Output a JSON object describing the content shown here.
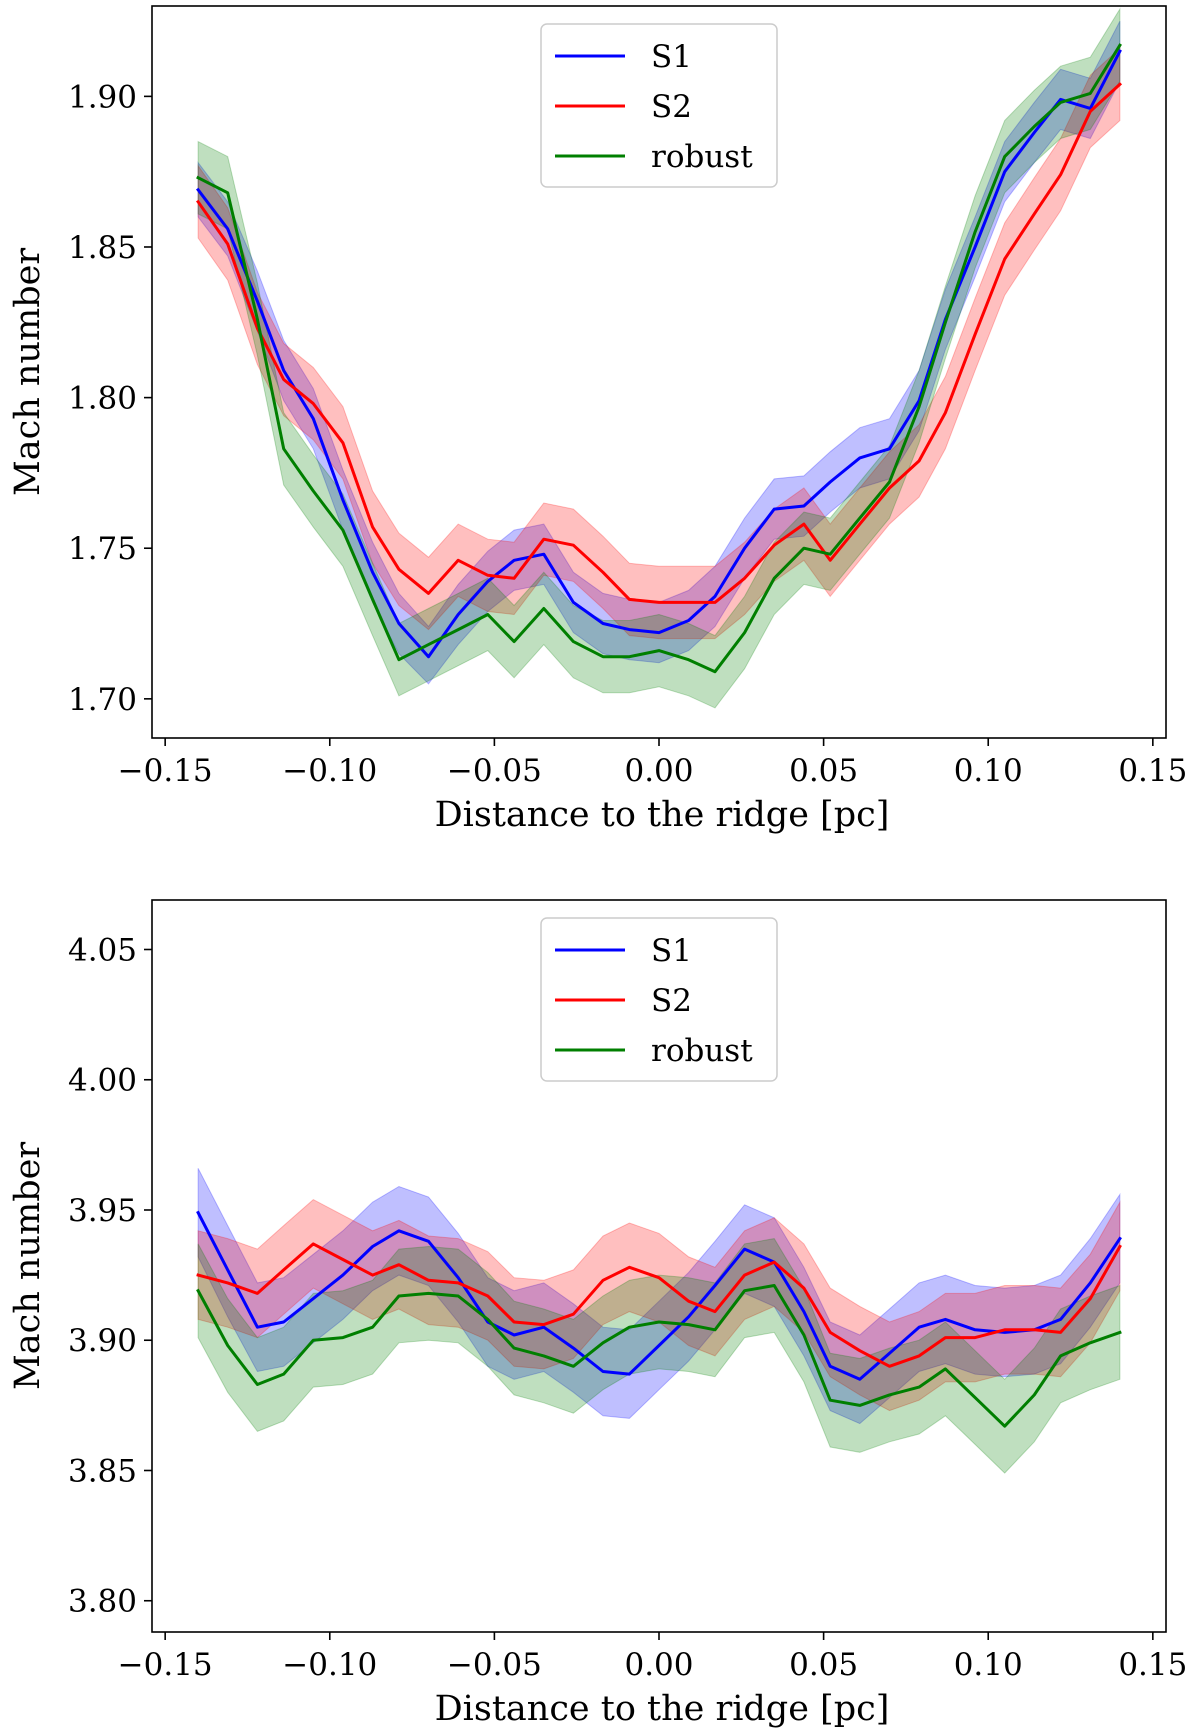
{
  "chart_data": [
    {
      "type": "line",
      "xlabel": "Distance to the ridge [pc]",
      "ylabel": "Mach number",
      "xlim": [
        -0.154,
        0.154
      ],
      "ylim": [
        1.687,
        1.93
      ],
      "xticks": [
        -0.15,
        -0.1,
        -0.05,
        0.0,
        0.05,
        0.1,
        0.15
      ],
      "xtick_labels": [
        "−0.15",
        "−0.10",
        "−0.05",
        "0.00",
        "0.05",
        "0.10",
        "0.15"
      ],
      "yticks": [
        1.7,
        1.75,
        1.8,
        1.85,
        1.9
      ],
      "ytick_labels": [
        "1.70",
        "1.75",
        "1.80",
        "1.85",
        "1.90"
      ],
      "legend_position": "upper-center",
      "x": [
        -0.14,
        -0.131,
        -0.122,
        -0.114,
        -0.105,
        -0.096,
        -0.087,
        -0.079,
        -0.07,
        -0.061,
        -0.052,
        -0.044,
        -0.035,
        -0.026,
        -0.017,
        -0.009,
        0.0,
        0.009,
        0.017,
        0.026,
        0.035,
        0.044,
        0.052,
        0.061,
        0.07,
        0.079,
        0.087,
        0.096,
        0.105,
        0.114,
        0.122,
        0.131,
        0.14
      ],
      "series": [
        {
          "name": "S1",
          "color": "#0000ff",
          "band_opacity": 0.25,
          "values": [
            1.869,
            1.856,
            1.832,
            1.809,
            1.793,
            1.766,
            1.742,
            1.725,
            1.714,
            1.728,
            1.739,
            1.746,
            1.748,
            1.732,
            1.725,
            1.723,
            1.722,
            1.726,
            1.734,
            1.75,
            1.763,
            1.764,
            1.772,
            1.78,
            1.783,
            1.799,
            1.826,
            1.85,
            1.875,
            1.888,
            1.899,
            1.896,
            1.915
          ],
          "lower": [
            1.86,
            1.847,
            1.822,
            1.799,
            1.783,
            1.756,
            1.732,
            1.715,
            1.705,
            1.718,
            1.729,
            1.736,
            1.738,
            1.722,
            1.715,
            1.713,
            1.712,
            1.716,
            1.724,
            1.74,
            1.753,
            1.754,
            1.762,
            1.77,
            1.773,
            1.789,
            1.816,
            1.84,
            1.865,
            1.878,
            1.889,
            1.886,
            1.905
          ],
          "upper": [
            1.878,
            1.865,
            1.842,
            1.819,
            1.803,
            1.776,
            1.752,
            1.735,
            1.724,
            1.738,
            1.749,
            1.756,
            1.758,
            1.742,
            1.735,
            1.733,
            1.732,
            1.736,
            1.744,
            1.76,
            1.773,
            1.774,
            1.782,
            1.79,
            1.793,
            1.809,
            1.836,
            1.86,
            1.885,
            1.898,
            1.909,
            1.906,
            1.925
          ]
        },
        {
          "name": "S2",
          "color": "#ff0000",
          "band_opacity": 0.25,
          "values": [
            1.865,
            1.851,
            1.823,
            1.806,
            1.798,
            1.785,
            1.757,
            1.743,
            1.735,
            1.746,
            1.741,
            1.74,
            1.753,
            1.751,
            1.742,
            1.733,
            1.732,
            1.732,
            1.732,
            1.74,
            1.751,
            1.758,
            1.746,
            1.758,
            1.77,
            1.779,
            1.795,
            1.821,
            1.846,
            1.861,
            1.874,
            1.895,
            1.904
          ],
          "lower": [
            1.853,
            1.839,
            1.811,
            1.794,
            1.786,
            1.773,
            1.745,
            1.731,
            1.723,
            1.734,
            1.729,
            1.728,
            1.741,
            1.739,
            1.73,
            1.721,
            1.72,
            1.72,
            1.72,
            1.728,
            1.739,
            1.746,
            1.734,
            1.746,
            1.758,
            1.767,
            1.783,
            1.809,
            1.834,
            1.849,
            1.862,
            1.883,
            1.892
          ],
          "upper": [
            1.877,
            1.863,
            1.835,
            1.818,
            1.81,
            1.797,
            1.769,
            1.755,
            1.747,
            1.758,
            1.753,
            1.752,
            1.765,
            1.763,
            1.754,
            1.745,
            1.744,
            1.744,
            1.744,
            1.752,
            1.763,
            1.77,
            1.758,
            1.77,
            1.782,
            1.791,
            1.807,
            1.833,
            1.858,
            1.873,
            1.886,
            1.907,
            1.916
          ]
        },
        {
          "name": "robust",
          "color": "#007f00",
          "band_opacity": 0.25,
          "values": [
            1.873,
            1.868,
            1.826,
            1.783,
            1.769,
            1.756,
            1.733,
            1.713,
            1.718,
            1.723,
            1.728,
            1.719,
            1.73,
            1.719,
            1.714,
            1.714,
            1.716,
            1.713,
            1.709,
            1.722,
            1.74,
            1.75,
            1.748,
            1.76,
            1.772,
            1.797,
            1.825,
            1.855,
            1.88,
            1.89,
            1.898,
            1.901,
            1.917
          ],
          "lower": [
            1.861,
            1.856,
            1.814,
            1.771,
            1.757,
            1.744,
            1.721,
            1.701,
            1.706,
            1.711,
            1.716,
            1.707,
            1.718,
            1.707,
            1.702,
            1.702,
            1.704,
            1.701,
            1.697,
            1.71,
            1.728,
            1.738,
            1.736,
            1.748,
            1.76,
            1.785,
            1.813,
            1.843,
            1.868,
            1.878,
            1.886,
            1.889,
            1.905
          ],
          "upper": [
            1.885,
            1.88,
            1.838,
            1.795,
            1.781,
            1.768,
            1.745,
            1.725,
            1.73,
            1.735,
            1.74,
            1.731,
            1.742,
            1.731,
            1.726,
            1.726,
            1.728,
            1.725,
            1.721,
            1.734,
            1.752,
            1.762,
            1.76,
            1.772,
            1.784,
            1.809,
            1.837,
            1.867,
            1.892,
            1.902,
            1.91,
            1.913,
            1.929
          ]
        }
      ]
    },
    {
      "type": "line",
      "xlabel": "Distance to the ridge [pc]",
      "ylabel": "Mach number",
      "xlim": [
        -0.154,
        0.154
      ],
      "ylim": [
        3.788,
        4.069
      ],
      "xticks": [
        -0.15,
        -0.1,
        -0.05,
        0.0,
        0.05,
        0.1,
        0.15
      ],
      "xtick_labels": [
        "−0.15",
        "−0.10",
        "−0.05",
        "0.00",
        "0.05",
        "0.10",
        "0.15"
      ],
      "yticks": [
        3.8,
        3.85,
        3.9,
        3.95,
        4.0,
        4.05
      ],
      "ytick_labels": [
        "3.80",
        "3.85",
        "3.90",
        "3.95",
        "4.00",
        "4.05"
      ],
      "legend_position": "upper-center",
      "x": [
        -0.14,
        -0.131,
        -0.122,
        -0.114,
        -0.105,
        -0.096,
        -0.087,
        -0.079,
        -0.07,
        -0.061,
        -0.052,
        -0.044,
        -0.035,
        -0.026,
        -0.017,
        -0.009,
        0.0,
        0.009,
        0.017,
        0.026,
        0.035,
        0.044,
        0.052,
        0.061,
        0.07,
        0.079,
        0.087,
        0.096,
        0.105,
        0.114,
        0.122,
        0.131,
        0.14
      ],
      "series": [
        {
          "name": "S1",
          "color": "#0000ff",
          "band_opacity": 0.25,
          "values": [
            3.949,
            3.927,
            3.905,
            3.907,
            3.916,
            3.925,
            3.936,
            3.942,
            3.938,
            3.924,
            3.907,
            3.902,
            3.905,
            3.897,
            3.888,
            3.887,
            3.898,
            3.909,
            3.921,
            3.935,
            3.93,
            3.911,
            3.89,
            3.885,
            3.895,
            3.905,
            3.908,
            3.904,
            3.903,
            3.904,
            3.908,
            3.922,
            3.939
          ],
          "lower": [
            3.932,
            3.909,
            3.888,
            3.89,
            3.899,
            3.908,
            3.919,
            3.925,
            3.921,
            3.907,
            3.89,
            3.885,
            3.888,
            3.88,
            3.871,
            3.87,
            3.881,
            3.892,
            3.904,
            3.918,
            3.913,
            3.894,
            3.873,
            3.868,
            3.878,
            3.888,
            3.891,
            3.887,
            3.886,
            3.887,
            3.891,
            3.905,
            3.922
          ],
          "upper": [
            3.966,
            3.944,
            3.922,
            3.924,
            3.933,
            3.942,
            3.953,
            3.959,
            3.955,
            3.941,
            3.924,
            3.919,
            3.922,
            3.914,
            3.905,
            3.904,
            3.915,
            3.926,
            3.938,
            3.952,
            3.947,
            3.928,
            3.907,
            3.902,
            3.912,
            3.922,
            3.925,
            3.921,
            3.92,
            3.921,
            3.925,
            3.939,
            3.956
          ]
        },
        {
          "name": "S2",
          "color": "#ff0000",
          "band_opacity": 0.25,
          "values": [
            3.925,
            3.922,
            3.918,
            3.927,
            3.937,
            3.931,
            3.925,
            3.929,
            3.923,
            3.922,
            3.917,
            3.907,
            3.906,
            3.91,
            3.923,
            3.928,
            3.924,
            3.915,
            3.911,
            3.925,
            3.93,
            3.92,
            3.903,
            3.896,
            3.89,
            3.894,
            3.901,
            3.901,
            3.904,
            3.904,
            3.903,
            3.916,
            3.936
          ],
          "lower": [
            3.908,
            3.905,
            3.901,
            3.91,
            3.92,
            3.914,
            3.908,
            3.912,
            3.906,
            3.905,
            3.9,
            3.89,
            3.889,
            3.893,
            3.906,
            3.911,
            3.907,
            3.898,
            3.894,
            3.908,
            3.913,
            3.903,
            3.886,
            3.879,
            3.873,
            3.877,
            3.884,
            3.884,
            3.887,
            3.887,
            3.886,
            3.899,
            3.919
          ],
          "upper": [
            3.942,
            3.939,
            3.935,
            3.944,
            3.954,
            3.948,
            3.942,
            3.946,
            3.94,
            3.939,
            3.934,
            3.924,
            3.923,
            3.927,
            3.94,
            3.945,
            3.941,
            3.932,
            3.928,
            3.942,
            3.947,
            3.937,
            3.92,
            3.913,
            3.907,
            3.911,
            3.918,
            3.918,
            3.921,
            3.921,
            3.92,
            3.933,
            3.953
          ]
        },
        {
          "name": "robust",
          "color": "#007f00",
          "band_opacity": 0.25,
          "values": [
            3.919,
            3.898,
            3.883,
            3.887,
            3.9,
            3.901,
            3.905,
            3.917,
            3.918,
            3.917,
            3.908,
            3.897,
            3.894,
            3.89,
            3.899,
            3.905,
            3.907,
            3.906,
            3.904,
            3.919,
            3.921,
            3.902,
            3.877,
            3.875,
            3.879,
            3.882,
            3.889,
            3.878,
            3.867,
            3.879,
            3.894,
            3.899,
            3.903
          ],
          "lower": [
            3.901,
            3.88,
            3.865,
            3.869,
            3.882,
            3.883,
            3.887,
            3.899,
            3.9,
            3.899,
            3.89,
            3.879,
            3.876,
            3.872,
            3.881,
            3.887,
            3.889,
            3.888,
            3.886,
            3.901,
            3.903,
            3.884,
            3.859,
            3.857,
            3.861,
            3.864,
            3.871,
            3.86,
            3.849,
            3.861,
            3.876,
            3.881,
            3.885
          ],
          "upper": [
            3.937,
            3.916,
            3.901,
            3.905,
            3.918,
            3.919,
            3.923,
            3.935,
            3.936,
            3.935,
            3.926,
            3.915,
            3.912,
            3.908,
            3.917,
            3.923,
            3.925,
            3.924,
            3.922,
            3.937,
            3.939,
            3.92,
            3.895,
            3.893,
            3.897,
            3.9,
            3.907,
            3.896,
            3.885,
            3.897,
            3.912,
            3.917,
            3.921
          ]
        }
      ]
    }
  ]
}
